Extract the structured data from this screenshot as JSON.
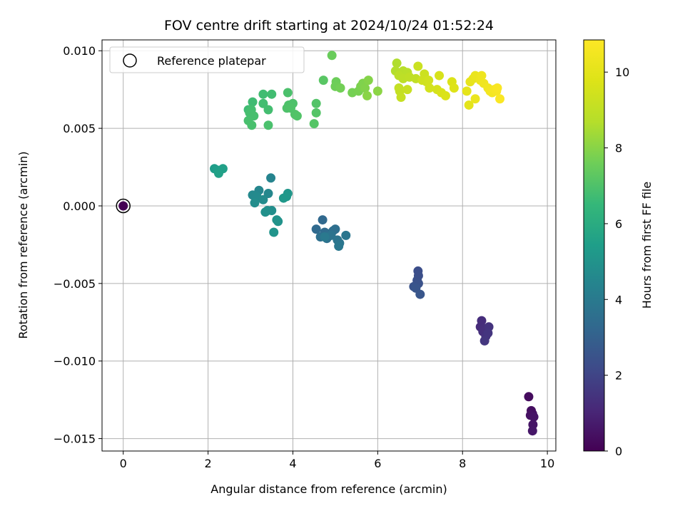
{
  "chart_data": {
    "type": "scatter",
    "title": "FOV centre drift starting at 2024/10/24 01:52:24",
    "xlabel": "Angular distance from reference (arcmin)",
    "ylabel": "Rotation from reference (arcmin)",
    "xlim": [
      -0.5,
      10.2
    ],
    "ylim": [
      -0.0158,
      0.0107
    ],
    "xticks": [
      0,
      2,
      4,
      6,
      8,
      10
    ],
    "xtick_labels": [
      "0",
      "2",
      "4",
      "6",
      "8",
      "10"
    ],
    "yticks": [
      0.01,
      0.005,
      0.0,
      -0.005,
      -0.01,
      -0.015
    ],
    "ytick_labels": [
      "0.010",
      "0.005",
      "0.000",
      "−0.005",
      "−0.010",
      "−0.015"
    ],
    "grid": true,
    "legend": {
      "position": "upper-left",
      "entries": [
        "Reference platepar"
      ]
    },
    "colorbar": {
      "label": "Hours from first FF file",
      "range": [
        0,
        10.85
      ],
      "ticks": [
        0,
        2,
        4,
        6,
        8,
        10
      ],
      "tick_labels": [
        "0",
        "2",
        "4",
        "6",
        "8",
        "10"
      ],
      "colormap": "viridis"
    },
    "reference_point": {
      "x": 0.0,
      "y": 0.0,
      "c": 0.0
    },
    "points": [
      {
        "x": 9.56,
        "y": -0.0123,
        "c": 0.3
      },
      {
        "x": 9.62,
        "y": -0.0132,
        "c": 0.35
      },
      {
        "x": 9.65,
        "y": -0.0134,
        "c": 0.4
      },
      {
        "x": 9.6,
        "y": -0.0135,
        "c": 0.45
      },
      {
        "x": 9.68,
        "y": -0.0136,
        "c": 0.5
      },
      {
        "x": 9.66,
        "y": -0.0141,
        "c": 0.55
      },
      {
        "x": 9.65,
        "y": -0.0145,
        "c": 0.6
      },
      {
        "x": 8.42,
        "y": -0.0078,
        "c": 1.2
      },
      {
        "x": 8.45,
        "y": -0.0074,
        "c": 1.25
      },
      {
        "x": 8.5,
        "y": -0.0079,
        "c": 1.3
      },
      {
        "x": 8.48,
        "y": -0.0081,
        "c": 1.35
      },
      {
        "x": 8.55,
        "y": -0.0084,
        "c": 1.4
      },
      {
        "x": 8.62,
        "y": -0.0078,
        "c": 1.45
      },
      {
        "x": 8.6,
        "y": -0.0082,
        "c": 1.5
      },
      {
        "x": 8.52,
        "y": -0.0087,
        "c": 1.55
      },
      {
        "x": 6.95,
        "y": -0.0042,
        "c": 2.3
      },
      {
        "x": 6.96,
        "y": -0.0045,
        "c": 2.35
      },
      {
        "x": 6.93,
        "y": -0.0048,
        "c": 2.4
      },
      {
        "x": 6.96,
        "y": -0.005,
        "c": 2.45
      },
      {
        "x": 6.85,
        "y": -0.0052,
        "c": 2.5
      },
      {
        "x": 6.9,
        "y": -0.0053,
        "c": 2.55
      },
      {
        "x": 7.0,
        "y": -0.0057,
        "c": 2.6
      },
      {
        "x": 4.7,
        "y": -0.0009,
        "c": 3.3
      },
      {
        "x": 4.55,
        "y": -0.0015,
        "c": 3.35
      },
      {
        "x": 4.75,
        "y": -0.0017,
        "c": 3.4
      },
      {
        "x": 4.85,
        "y": -0.0018,
        "c": 3.45
      },
      {
        "x": 4.95,
        "y": -0.0016,
        "c": 3.5
      },
      {
        "x": 5.0,
        "y": -0.0015,
        "c": 3.55
      },
      {
        "x": 4.65,
        "y": -0.002,
        "c": 3.6
      },
      {
        "x": 4.8,
        "y": -0.0021,
        "c": 3.65
      },
      {
        "x": 4.9,
        "y": -0.0019,
        "c": 3.7
      },
      {
        "x": 5.05,
        "y": -0.0022,
        "c": 3.75
      },
      {
        "x": 5.1,
        "y": -0.0024,
        "c": 3.8
      },
      {
        "x": 5.25,
        "y": -0.0019,
        "c": 3.85
      },
      {
        "x": 5.08,
        "y": -0.0026,
        "c": 3.9
      },
      {
        "x": 4.75,
        "y": -0.002,
        "c": 3.95
      },
      {
        "x": 3.48,
        "y": 0.0018,
        "c": 4.4
      },
      {
        "x": 3.2,
        "y": 0.001,
        "c": 4.5
      },
      {
        "x": 3.42,
        "y": 0.0008,
        "c": 4.55
      },
      {
        "x": 3.05,
        "y": 0.0007,
        "c": 4.6
      },
      {
        "x": 3.15,
        "y": 0.0006,
        "c": 4.65
      },
      {
        "x": 3.3,
        "y": 0.0004,
        "c": 4.7
      },
      {
        "x": 3.1,
        "y": 0.0002,
        "c": 4.75
      },
      {
        "x": 3.5,
        "y": -0.0003,
        "c": 4.8
      },
      {
        "x": 3.4,
        "y": -0.0003,
        "c": 4.85
      },
      {
        "x": 3.35,
        "y": -0.0004,
        "c": 4.9
      },
      {
        "x": 3.62,
        "y": -0.0009,
        "c": 4.95
      },
      {
        "x": 3.65,
        "y": -0.001,
        "c": 5.0
      },
      {
        "x": 3.55,
        "y": -0.0017,
        "c": 5.05
      },
      {
        "x": 3.88,
        "y": 0.0008,
        "c": 5.1
      },
      {
        "x": 3.85,
        "y": 0.0006,
        "c": 5.15
      },
      {
        "x": 3.78,
        "y": 0.0005,
        "c": 5.2
      },
      {
        "x": 2.15,
        "y": 0.0024,
        "c": 5.4
      },
      {
        "x": 2.22,
        "y": 0.0023,
        "c": 5.45
      },
      {
        "x": 2.35,
        "y": 0.0024,
        "c": 5.5
      },
      {
        "x": 2.25,
        "y": 0.0021,
        "c": 5.55
      },
      {
        "x": 2.95,
        "y": 0.0062,
        "c": 6.7
      },
      {
        "x": 3.05,
        "y": 0.0067,
        "c": 6.72
      },
      {
        "x": 3.3,
        "y": 0.0072,
        "c": 6.74
      },
      {
        "x": 3.5,
        "y": 0.0072,
        "c": 6.76
      },
      {
        "x": 3.3,
        "y": 0.0066,
        "c": 6.78
      },
      {
        "x": 3.42,
        "y": 0.0062,
        "c": 6.8
      },
      {
        "x": 3.02,
        "y": 0.0062,
        "c": 6.82
      },
      {
        "x": 2.98,
        "y": 0.006,
        "c": 6.84
      },
      {
        "x": 3.08,
        "y": 0.0058,
        "c": 6.86
      },
      {
        "x": 2.95,
        "y": 0.0055,
        "c": 6.88
      },
      {
        "x": 3.03,
        "y": 0.0052,
        "c": 6.9
      },
      {
        "x": 3.42,
        "y": 0.0052,
        "c": 6.92
      },
      {
        "x": 3.88,
        "y": 0.0073,
        "c": 6.94
      },
      {
        "x": 3.9,
        "y": 0.0065,
        "c": 6.96
      },
      {
        "x": 4.0,
        "y": 0.0066,
        "c": 6.98
      },
      {
        "x": 3.86,
        "y": 0.0063,
        "c": 7.0
      },
      {
        "x": 3.95,
        "y": 0.0063,
        "c": 7.02
      },
      {
        "x": 4.05,
        "y": 0.0059,
        "c": 7.04
      },
      {
        "x": 4.1,
        "y": 0.0058,
        "c": 7.06
      },
      {
        "x": 4.55,
        "y": 0.0066,
        "c": 7.08
      },
      {
        "x": 4.55,
        "y": 0.006,
        "c": 7.1
      },
      {
        "x": 4.5,
        "y": 0.0053,
        "c": 7.12
      },
      {
        "x": 4.72,
        "y": 0.0081,
        "c": 7.2
      },
      {
        "x": 4.92,
        "y": 0.0097,
        "c": 7.5
      },
      {
        "x": 5.02,
        "y": 0.008,
        "c": 7.55
      },
      {
        "x": 5.0,
        "y": 0.0077,
        "c": 7.6
      },
      {
        "x": 5.12,
        "y": 0.0076,
        "c": 7.65
      },
      {
        "x": 5.4,
        "y": 0.0073,
        "c": 7.7
      },
      {
        "x": 5.55,
        "y": 0.0074,
        "c": 7.75
      },
      {
        "x": 5.6,
        "y": 0.0077,
        "c": 7.8
      },
      {
        "x": 5.65,
        "y": 0.0079,
        "c": 7.85
      },
      {
        "x": 5.7,
        "y": 0.0076,
        "c": 7.9
      },
      {
        "x": 5.78,
        "y": 0.0081,
        "c": 7.95
      },
      {
        "x": 5.75,
        "y": 0.0071,
        "c": 8.0
      },
      {
        "x": 6.0,
        "y": 0.0074,
        "c": 8.05
      },
      {
        "x": 6.45,
        "y": 0.0092,
        "c": 8.6
      },
      {
        "x": 6.42,
        "y": 0.0087,
        "c": 8.65
      },
      {
        "x": 6.55,
        "y": 0.0086,
        "c": 8.7
      },
      {
        "x": 6.6,
        "y": 0.0087,
        "c": 8.75
      },
      {
        "x": 6.7,
        "y": 0.0086,
        "c": 8.8
      },
      {
        "x": 6.5,
        "y": 0.0084,
        "c": 8.85
      },
      {
        "x": 6.6,
        "y": 0.0082,
        "c": 8.9
      },
      {
        "x": 6.75,
        "y": 0.0083,
        "c": 8.95
      },
      {
        "x": 6.9,
        "y": 0.0082,
        "c": 9.0
      },
      {
        "x": 6.5,
        "y": 0.0076,
        "c": 9.05
      },
      {
        "x": 6.52,
        "y": 0.0074,
        "c": 9.1
      },
      {
        "x": 6.55,
        "y": 0.007,
        "c": 9.15
      },
      {
        "x": 6.7,
        "y": 0.0075,
        "c": 9.2
      },
      {
        "x": 6.95,
        "y": 0.009,
        "c": 9.25
      },
      {
        "x": 7.1,
        "y": 0.0085,
        "c": 9.3
      },
      {
        "x": 7.05,
        "y": 0.0081,
        "c": 9.35
      },
      {
        "x": 7.15,
        "y": 0.008,
        "c": 9.4
      },
      {
        "x": 7.2,
        "y": 0.0081,
        "c": 9.45
      },
      {
        "x": 7.22,
        "y": 0.0076,
        "c": 9.5
      },
      {
        "x": 7.4,
        "y": 0.0075,
        "c": 9.55
      },
      {
        "x": 7.45,
        "y": 0.0084,
        "c": 9.6
      },
      {
        "x": 7.5,
        "y": 0.0073,
        "c": 9.65
      },
      {
        "x": 7.6,
        "y": 0.0071,
        "c": 9.7
      },
      {
        "x": 7.75,
        "y": 0.008,
        "c": 9.75
      },
      {
        "x": 7.8,
        "y": 0.0076,
        "c": 9.8
      },
      {
        "x": 8.15,
        "y": 0.0065,
        "c": 10.0
      },
      {
        "x": 8.1,
        "y": 0.0074,
        "c": 10.05
      },
      {
        "x": 8.18,
        "y": 0.008,
        "c": 10.1
      },
      {
        "x": 8.25,
        "y": 0.0082,
        "c": 10.15
      },
      {
        "x": 8.3,
        "y": 0.0084,
        "c": 10.2
      },
      {
        "x": 8.3,
        "y": 0.0069,
        "c": 10.25
      },
      {
        "x": 8.42,
        "y": 0.0081,
        "c": 10.3
      },
      {
        "x": 8.45,
        "y": 0.0084,
        "c": 10.35
      },
      {
        "x": 8.5,
        "y": 0.0079,
        "c": 10.4
      },
      {
        "x": 8.6,
        "y": 0.0076,
        "c": 10.45
      },
      {
        "x": 8.65,
        "y": 0.0074,
        "c": 10.5
      },
      {
        "x": 8.7,
        "y": 0.0073,
        "c": 10.55
      },
      {
        "x": 8.75,
        "y": 0.0075,
        "c": 10.6
      },
      {
        "x": 8.8,
        "y": 0.0074,
        "c": 10.65
      },
      {
        "x": 8.82,
        "y": 0.0076,
        "c": 10.7
      },
      {
        "x": 8.88,
        "y": 0.0069,
        "c": 10.75
      }
    ]
  }
}
